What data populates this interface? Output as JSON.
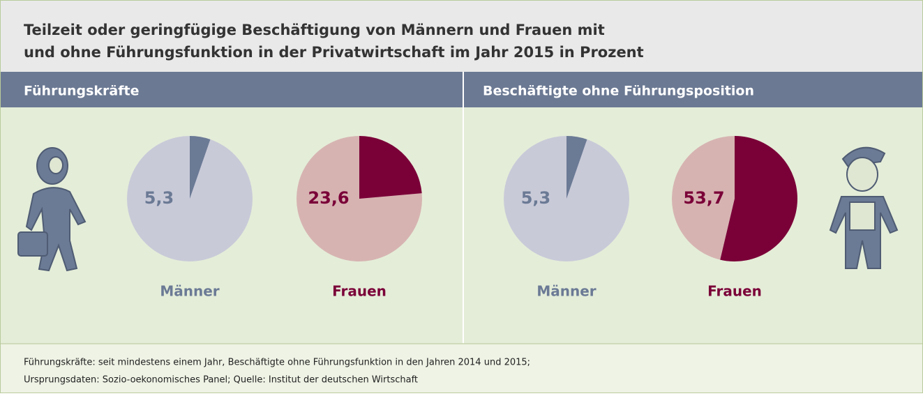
{
  "title": [
    "Teilzeit oder geringfügige Beschäftigung von Männern und Frauen mit",
    "und ohne Führungsfunktion in der Privatwirtschaft im Jahr 2015 in Prozent"
  ],
  "panels": [
    {
      "heading": "Führungskräfte"
    },
    {
      "heading": "Beschäftigte ohne Führungsposition"
    }
  ],
  "chart_data": [
    {
      "type": "pie",
      "title": "Männer",
      "values": [
        5.3
      ],
      "value_labels": [
        "5,3"
      ],
      "colors": [
        "#6b7a95"
      ],
      "base_color": "#c9cad8",
      "label_color": "#6b7a95"
    },
    {
      "type": "pie",
      "title": "Frauen",
      "values": [
        23.6
      ],
      "value_labels": [
        "23,6"
      ],
      "colors": [
        "#7a0038"
      ],
      "base_color": "#d6b3b1",
      "label_color": "#7a0038"
    },
    {
      "type": "pie",
      "title": "Männer",
      "values": [
        5.3
      ],
      "value_labels": [
        "5,3"
      ],
      "colors": [
        "#6b7a95"
      ],
      "base_color": "#c9cad8",
      "label_color": "#6b7a95"
    },
    {
      "type": "pie",
      "title": "Frauen",
      "values": [
        53.7
      ],
      "value_labels": [
        "53,7"
      ],
      "colors": [
        "#7a0038"
      ],
      "base_color": "#d6b3b1",
      "label_color": "#7a0038"
    }
  ],
  "footnote": [
    "Führungskräfte: seit mindestens einem Jahr, Beschäftigte ohne Führungsfunktion in den Jahren 2014 und 2015;",
    "Ursprungsdaten: Sozio-oekonomisches Panel; Quelle: Institut der deutschen Wirtschaft"
  ]
}
